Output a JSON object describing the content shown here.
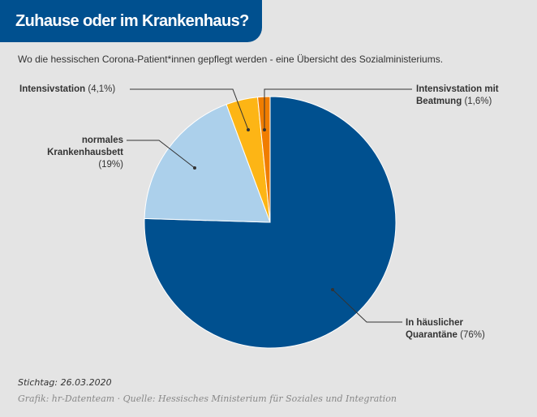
{
  "title": "Zuhause oder im Krankenhaus?",
  "subtitle": "Wo die hessischen Corona-Patient*innen gepflegt werden - eine Übersicht des Sozialministeriums.",
  "chart_data": {
    "type": "pie",
    "title": "Zuhause oder im Krankenhaus?",
    "slices": [
      {
        "name": "In häuslicher Quarantäne",
        "name_lines": [
          "In häuslicher",
          "Quarantäne"
        ],
        "value": 76,
        "value_label": "(76%)",
        "color": "#00508f"
      },
      {
        "name": "normales Krankenhausbett",
        "name_lines": [
          "normales",
          "Krankenhausbett"
        ],
        "value": 19,
        "value_label": "(19%)",
        "color": "#acd0eb"
      },
      {
        "name": "Intensivstation",
        "name_lines": [
          "Intensivstation"
        ],
        "value": 4.1,
        "value_label": "(4,1%)",
        "color": "#fdb515"
      },
      {
        "name": "Intensivstation mit Beatmung",
        "name_lines": [
          "Intensivstation mit",
          "Beatmung"
        ],
        "value": 1.6,
        "value_label": "(1,6%)",
        "color": "#f07d00"
      }
    ]
  },
  "footer": {
    "date": "Stichtag: 26.03.2020",
    "source": "Grafik: hr-Datenteam · Quelle: Hessisches Ministerium für Soziales und Integration"
  }
}
